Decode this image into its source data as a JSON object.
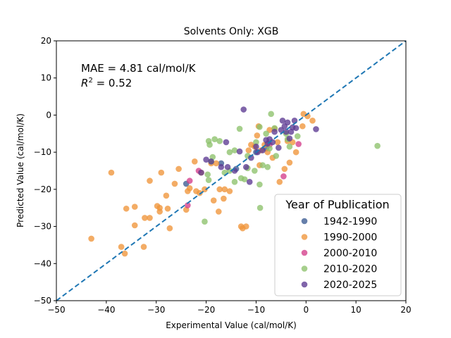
{
  "chart_data": {
    "type": "scatter",
    "title": "Solvents Only: XGB",
    "xlabel": "Experimental Value (cal/mol/K)",
    "ylabel": "Predicted Value (cal/mol/K)",
    "xlim": [
      -50,
      20
    ],
    "ylim": [
      -50,
      20
    ],
    "xticks": [
      "−50",
      "−40",
      "−30",
      "−20",
      "−10",
      "0",
      "10",
      "20"
    ],
    "yticks": [
      "−50",
      "−40",
      "−30",
      "−20",
      "−10",
      "0",
      "10",
      "20"
    ],
    "annotations": {
      "mae": "MAE = 4.81 cal/mol/K",
      "r2_prefix": "R",
      "r2_sup": "2",
      "r2_suffix": " = 0.52"
    },
    "reference_line": {
      "type": "y=x",
      "style": "dashed",
      "color": "#1f77b4"
    },
    "legend": {
      "title": "Year of Publication",
      "placement": "lower-right"
    },
    "series": [
      {
        "name": "1942-1990",
        "color": "#3b5b92",
        "points": [
          [
            -24,
            -18.5
          ],
          [
            -17,
            -13
          ],
          [
            -14,
            -14.5
          ],
          [
            -8,
            -9
          ],
          [
            -10,
            -10
          ]
        ]
      },
      {
        "name": "1990-2000",
        "color": "#f0953a",
        "points": [
          [
            -43,
            -33.3
          ],
          [
            -39,
            -15.5
          ],
          [
            -37,
            -35.5
          ],
          [
            -36.3,
            -37.3
          ],
          [
            -36,
            -25.2
          ],
          [
            -34.3,
            -24.7
          ],
          [
            -34.3,
            -29.7
          ],
          [
            -32.3,
            -27.7
          ],
          [
            -32.5,
            -35.5
          ],
          [
            -31.3,
            -27.7
          ],
          [
            -31.3,
            -17.7
          ],
          [
            -29.8,
            -24.5
          ],
          [
            -29.3,
            -25
          ],
          [
            -29.3,
            -26
          ],
          [
            -29,
            -15.5
          ],
          [
            -28,
            -21.7
          ],
          [
            -27.7,
            -25.2
          ],
          [
            -27.3,
            -30.5
          ],
          [
            -26.3,
            -18.5
          ],
          [
            -25.5,
            -14.5
          ],
          [
            -24,
            -25.5
          ],
          [
            -23.7,
            -20.5
          ],
          [
            -23.3,
            -19.7
          ],
          [
            -22.3,
            -12.5
          ],
          [
            -22,
            -20.5
          ],
          [
            -21.3,
            -21
          ],
          [
            -21,
            -15.5
          ],
          [
            -20.3,
            -20
          ],
          [
            -19,
            -13
          ],
          [
            -18.5,
            -23
          ],
          [
            -18,
            -13
          ],
          [
            -17.5,
            -26
          ],
          [
            -17.3,
            -20
          ],
          [
            -16.5,
            -22.5
          ],
          [
            -16.3,
            -20
          ],
          [
            -15.3,
            -20.5
          ],
          [
            -13,
            -30
          ],
          [
            -12.7,
            -30.5
          ],
          [
            -12,
            -30
          ],
          [
            -11.5,
            -9.5
          ],
          [
            -11,
            -8
          ],
          [
            -10.3,
            -8.5
          ],
          [
            -9.8,
            -5.5
          ],
          [
            -9.5,
            -3
          ],
          [
            -9.3,
            -13.5
          ],
          [
            -9,
            -9.5
          ],
          [
            -8.3,
            -8
          ],
          [
            -7.7,
            -10
          ],
          [
            -7.3,
            -4
          ],
          [
            -6.7,
            -11.5
          ],
          [
            -6.3,
            -3.7
          ],
          [
            -5.7,
            -7.3
          ],
          [
            -5.3,
            -18
          ],
          [
            -4.3,
            -14.5
          ],
          [
            -3.7,
            -7
          ],
          [
            -3.3,
            -12.8
          ],
          [
            -2.7,
            -7.3
          ],
          [
            -2,
            -10
          ],
          [
            -0.7,
            -3
          ],
          [
            -0.5,
            0.3
          ],
          [
            0.3,
            -0.3
          ],
          [
            1.3,
            -1.5
          ]
        ]
      },
      {
        "name": "2000-2010",
        "color": "#d43d8a",
        "points": [
          [
            -23.7,
            -24.3
          ],
          [
            -23.3,
            -17.7
          ],
          [
            -21.5,
            -15
          ],
          [
            -7.3,
            -8
          ],
          [
            -4.5,
            -16.5
          ],
          [
            -1.5,
            -7.8
          ]
        ]
      },
      {
        "name": "2010-2020",
        "color": "#8dc26b",
        "points": [
          [
            -20.3,
            -28.7
          ],
          [
            -19.7,
            -16
          ],
          [
            -19.5,
            -7
          ],
          [
            -19.5,
            -17.5
          ],
          [
            -19.3,
            -8
          ],
          [
            -19,
            -12.5
          ],
          [
            -18.7,
            -11.3
          ],
          [
            -18.3,
            -6.5
          ],
          [
            -17.3,
            -7
          ],
          [
            -16.3,
            -15.5
          ],
          [
            -15.3,
            -10
          ],
          [
            -15.3,
            -15
          ],
          [
            -14.3,
            -9.5
          ],
          [
            -14.3,
            -18
          ],
          [
            -13.3,
            -3.7
          ],
          [
            -13,
            -17
          ],
          [
            -12.3,
            -17.3
          ],
          [
            -11.7,
            -11
          ],
          [
            -11.7,
            -14.3
          ],
          [
            -10.3,
            -15
          ],
          [
            -10,
            -7.3
          ],
          [
            -9.3,
            -3.2
          ],
          [
            -9.3,
            -18.7
          ],
          [
            -9.2,
            -25
          ],
          [
            -8.7,
            -13.5
          ],
          [
            -8,
            -5
          ],
          [
            -7.7,
            -14
          ],
          [
            -7.3,
            -9
          ],
          [
            -7,
            0.3
          ],
          [
            -6.3,
            -3.5
          ],
          [
            -6,
            -11
          ],
          [
            -4,
            -5
          ],
          [
            -3.7,
            -6.5
          ],
          [
            -3.3,
            -8.5
          ],
          [
            -1.7,
            -5.7
          ],
          [
            14.3,
            -8.3
          ]
        ]
      },
      {
        "name": "2020-2025",
        "color": "#5c3a92",
        "points": [
          [
            -21,
            -15.5
          ],
          [
            -20,
            -12
          ],
          [
            -19,
            -12.5
          ],
          [
            -17,
            -14
          ],
          [
            -16,
            -7.3
          ],
          [
            -15.7,
            -14
          ],
          [
            -14.3,
            -15
          ],
          [
            -13.3,
            -9.8
          ],
          [
            -12.5,
            1.5
          ],
          [
            -12,
            -14
          ],
          [
            -11.3,
            -18
          ],
          [
            -11,
            -11.5
          ],
          [
            -10,
            -8.5
          ],
          [
            -9.7,
            -10
          ],
          [
            -8.7,
            -9.5
          ],
          [
            -8,
            -6.7
          ],
          [
            -7.7,
            -7.7
          ],
          [
            -7.3,
            -6.5
          ],
          [
            -6.7,
            -7.3
          ],
          [
            -6.3,
            -4.5
          ],
          [
            -5.5,
            -8.8
          ],
          [
            -5,
            -4
          ],
          [
            -4.7,
            -1.5
          ],
          [
            -4.3,
            -3
          ],
          [
            -4,
            -4.5
          ],
          [
            -3.7,
            -2
          ],
          [
            -3.3,
            -6.3
          ],
          [
            -3,
            -4.5
          ],
          [
            -2.7,
            -3.3
          ],
          [
            -2.3,
            -1.5
          ],
          [
            -2,
            -3.5
          ],
          [
            2,
            -3.8
          ]
        ]
      }
    ]
  }
}
